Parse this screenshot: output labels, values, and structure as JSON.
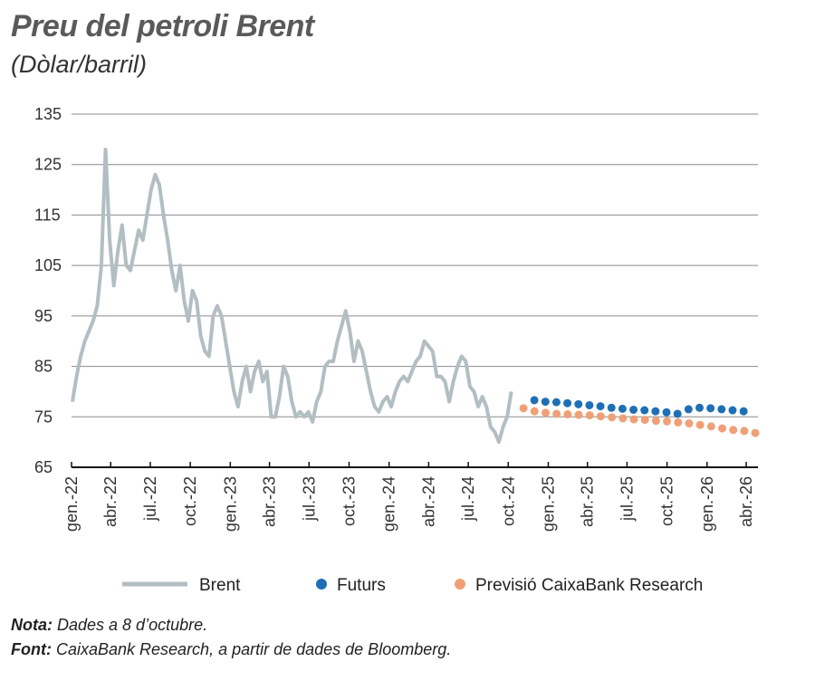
{
  "title": "Preu del petroli Brent",
  "subtitle": "(Dòlar/barril)",
  "note_label": "Nota:",
  "note_text": " Dades a 8 d’octubre.",
  "source_label": "Font:",
  "source_text": " CaixaBank Research, a partir de dades de Bloomberg.",
  "chart_data": {
    "type": "line",
    "ylim": [
      65,
      135
    ],
    "yticks": [
      "135",
      "125",
      "115",
      "105",
      "95",
      "85",
      "75",
      "65"
    ],
    "grid": true,
    "legend_position": "bottom",
    "xlim": [
      "2022-01-01",
      "2026-04-28"
    ],
    "xticks": [
      {
        "date": "2022-01-01",
        "label": "gen.-22"
      },
      {
        "date": "2022-04-01",
        "label": "abr.-22"
      },
      {
        "date": "2022-07-01",
        "label": "jul.-22"
      },
      {
        "date": "2022-10-01",
        "label": "oct.-22"
      },
      {
        "date": "2023-01-01",
        "label": "gen.-23"
      },
      {
        "date": "2023-04-01",
        "label": "abr.-23"
      },
      {
        "date": "2023-07-01",
        "label": "jul.-23"
      },
      {
        "date": "2023-10-01",
        "label": "oct.-23"
      },
      {
        "date": "2024-01-01",
        "label": "gen.-24"
      },
      {
        "date": "2024-04-01",
        "label": "abr.-24"
      },
      {
        "date": "2024-07-01",
        "label": "jul.-24"
      },
      {
        "date": "2024-10-01",
        "label": "oct.-24"
      },
      {
        "date": "2025-01-01",
        "label": "gen.-25"
      },
      {
        "date": "2025-04-01",
        "label": "abr.-25"
      },
      {
        "date": "2025-07-01",
        "label": "jul.-25"
      },
      {
        "date": "2025-10-01",
        "label": "oct.-25"
      },
      {
        "date": "2026-01-01",
        "label": "gen.-26"
      },
      {
        "date": "2026-04-01",
        "label": "abr.-26"
      }
    ],
    "series": [
      {
        "name": "Brent",
        "style": "line",
        "color": "#b3bec2",
        "date_range": [
          "2022-01-03",
          "2024-10-08"
        ],
        "values": [
          78,
          83,
          87,
          90,
          92,
          94,
          97,
          105,
          128,
          110,
          101,
          108,
          113,
          105,
          104,
          108,
          112,
          110,
          115,
          120,
          123,
          121,
          115,
          110,
          104,
          100,
          105,
          98,
          94,
          100,
          98,
          91,
          88,
          87,
          95,
          97,
          95,
          90,
          85,
          80,
          77,
          82,
          85,
          80,
          84,
          86,
          82,
          84,
          75,
          75,
          79,
          85,
          83,
          78,
          75,
          76,
          75,
          76,
          74,
          78,
          80,
          85,
          86,
          86,
          90,
          93,
          96,
          92,
          86,
          90,
          88,
          84,
          80,
          77,
          76,
          78,
          79,
          77,
          80,
          82,
          83,
          82,
          84,
          86,
          87,
          90,
          89,
          88,
          83,
          83,
          82,
          78,
          82,
          85,
          87,
          86,
          81,
          80,
          77,
          79,
          77,
          73,
          72,
          70,
          73,
          75,
          80
        ]
      },
      {
        "name": "Futurs",
        "style": "dots",
        "color": "#1f6fb5",
        "date_range": [
          "2024-11-30",
          "2026-03-26"
        ],
        "values": [
          78.3,
          78.0,
          77.9,
          77.7,
          77.5,
          77.3,
          77.1,
          76.8,
          76.6,
          76.4,
          76.3,
          76.1,
          75.9,
          75.6,
          76.5,
          76.8,
          76.7,
          76.5,
          76.3,
          76.1
        ]
      },
      {
        "name": "Previsió CaixaBank Research",
        "style": "dots",
        "color": "#f0a077",
        "date_range": [
          "2024-11-05",
          "2026-04-22"
        ],
        "values": [
          76.7,
          76.1,
          75.8,
          75.6,
          75.5,
          75.4,
          75.3,
          75.1,
          74.9,
          74.7,
          74.5,
          74.4,
          74.2,
          74.1,
          73.9,
          73.7,
          73.4,
          73.1,
          72.7,
          72.4,
          72.2,
          71.8
        ]
      }
    ]
  }
}
